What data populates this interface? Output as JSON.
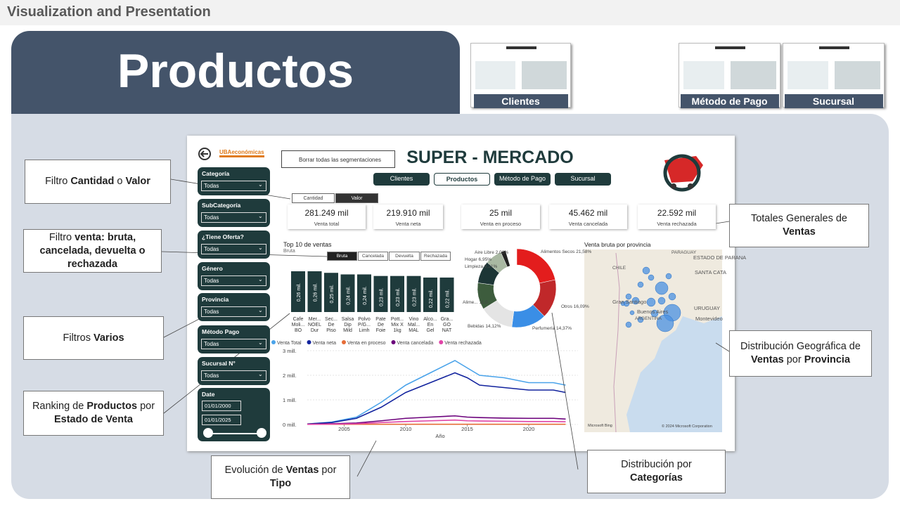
{
  "header": {
    "title": "Visualization and Presentation"
  },
  "banner": {
    "title": "Productos"
  },
  "thumbnails": [
    {
      "label": "Clientes"
    },
    {
      "label": "Método de Pago"
    },
    {
      "label": "Sucursal"
    }
  ],
  "callouts": [
    {
      "parts": [
        "Filtro ",
        "Cantidad",
        " o ",
        "Valor"
      ]
    },
    {
      "parts": [
        "Filtro ",
        "venta: bruta, cancelada, devuelta o rechazada"
      ]
    },
    {
      "parts": [
        "Filtros ",
        "Varios"
      ]
    },
    {
      "parts": [
        "Ranking de ",
        "Productos",
        " por ",
        "Estado de Venta"
      ]
    },
    {
      "parts": [
        "Evolución de ",
        "Ventas",
        " por ",
        "Tipo"
      ]
    },
    {
      "parts": [
        "Distribución por ",
        "Categorías"
      ]
    },
    {
      "parts": [
        "Totales Generales de ",
        "Ventas"
      ]
    },
    {
      "parts": [
        "Distribución Geográfica de ",
        "Ventas",
        " por ",
        "Provincia"
      ]
    }
  ],
  "dashboard": {
    "title": "SUPER - MERCADO",
    "logo": "UBAeconómicas",
    "clear_button": "Borrar todas las segmentaciones",
    "nav": [
      "Clientes",
      "Productos",
      "Método de Pago",
      "Sucursal"
    ],
    "toggle": [
      "Cantidad",
      "Valor"
    ],
    "filters": [
      {
        "label": "Categoría",
        "value": "Todas"
      },
      {
        "label": "SubCategoría",
        "value": "Todas"
      },
      {
        "label": "¿Tiene Oferta?",
        "value": "Todas"
      },
      {
        "label": "Género",
        "value": "Todas"
      },
      {
        "label": "Provincia",
        "value": "Todas"
      },
      {
        "label": "Método Pago",
        "value": "Todas"
      },
      {
        "label": "Sucursal N°",
        "value": "Todas"
      }
    ],
    "date_filter": {
      "label": "Date",
      "from": "01/01/2000",
      "to": "01/01/2025"
    },
    "kpis": [
      {
        "value": "281.249 mil",
        "label": "Venta total"
      },
      {
        "value": "219.910 mil",
        "label": "Venta neta"
      },
      {
        "value": "25 mil",
        "label": "Venta en proceso"
      },
      {
        "value": "45.462 mil",
        "label": "Venta cancelada"
      },
      {
        "value": "22.592 mil",
        "label": "Venta rechazada"
      }
    ],
    "top10": {
      "title": "Top 10 de ventas",
      "subtitle": "Bruta",
      "tabs": [
        "Bruta",
        "Cancelada",
        "Devuelta",
        "Rechazada"
      ],
      "color": "#1f3b3c",
      "categories": [
        "Cafe\nMoli...\nBO",
        "Mer...\nNOEL\nDur",
        "Sec...\nDe\nPiso",
        "Salsa\nDip\nMild",
        "Polvo\nP/G...\nLimh",
        "Pate\nDe\nFoie",
        "Pott...\nMix X\n1kg",
        "Vino\nMal...\nMAL",
        "Alco...\nEn\nGel",
        "Gra...\nGO\nNAT"
      ],
      "values": [
        0.26,
        0.26,
        0.25,
        0.24,
        0.24,
        0.23,
        0.23,
        0.23,
        0.22,
        0.22
      ],
      "value_labels": [
        "0,26 mil.",
        "0,26 mil.",
        "0,25 mil.",
        "0,24 mil.",
        "0,24 mil.",
        "0,23 mil.",
        "0,23 mil.",
        "0,23 mil.",
        "0,22 mil.",
        "0,22 mil."
      ]
    },
    "donut": {
      "slices": [
        {
          "label": "Alimentos Secos",
          "value": 21.58,
          "value_label": "21,58%",
          "color": "#e31d1d"
        },
        {
          "label": "Otros",
          "value": 16.09,
          "value_label": "16,09%",
          "color": "#c0282a"
        },
        {
          "label": "Perfumería",
          "value": 14.37,
          "value_label": "14,37%",
          "color": "#3a8ee6"
        },
        {
          "label": "Bebidas",
          "value": 14.12,
          "value_label": "14,12%",
          "color": "#e4e4e4"
        },
        {
          "label": "Alime...",
          "value": 11.0,
          "value_label": "11,0...",
          "color": "#3d5c3d"
        },
        {
          "label": "Limpieza",
          "value": 9.21,
          "value_label": "9,21%",
          "color": "#1d3636"
        },
        {
          "label": "Hogar",
          "value": 6.95,
          "value_label": "6,95%",
          "color": "#a9b8a2"
        },
        {
          "label": "Aire Libre",
          "value": 2.02,
          "value_label": "2,02%",
          "color": "#222222"
        }
      ]
    },
    "trend": {
      "x_label": "Año",
      "xlim": [
        2002,
        2024
      ],
      "xticks": [
        2005,
        2010,
        2015,
        2020
      ],
      "ylim": [
        0,
        3
      ],
      "yticks": [
        {
          "value": 0,
          "label": "0 mill."
        },
        {
          "value": 1,
          "label": "1 mill."
        },
        {
          "value": 2,
          "label": "2 mill."
        },
        {
          "value": 3,
          "label": "3 mill."
        }
      ],
      "x": [
        2002,
        2004,
        2006,
        2008,
        2010,
        2012,
        2014,
        2015,
        2016,
        2018,
        2020,
        2022,
        2023
      ],
      "series": [
        {
          "name": "Venta Total",
          "color": "#4aa3ea",
          "values": [
            0.02,
            0.1,
            0.3,
            0.9,
            1.6,
            2.1,
            2.6,
            2.3,
            2.0,
            1.9,
            1.7,
            1.7,
            1.6
          ]
        },
        {
          "name": "Venta neta",
          "color": "#12239e",
          "values": [
            0.02,
            0.08,
            0.25,
            0.7,
            1.3,
            1.7,
            2.1,
            1.9,
            1.6,
            1.5,
            1.4,
            1.4,
            1.3
          ]
        },
        {
          "name": "Venta en proceso",
          "color": "#e66c37",
          "values": [
            0.01,
            0.01,
            0.01,
            0.01,
            0.01,
            0.01,
            0.01,
            0.01,
            0.01,
            0.01,
            0.01,
            0.01,
            0.01
          ]
        },
        {
          "name": "Venta cancelada",
          "color": "#6b007b",
          "values": [
            0.01,
            0.03,
            0.06,
            0.15,
            0.25,
            0.3,
            0.35,
            0.3,
            0.28,
            0.26,
            0.25,
            0.25,
            0.22
          ]
        },
        {
          "name": "Venta rechazada",
          "color": "#e044a7",
          "values": [
            0.005,
            0.015,
            0.03,
            0.08,
            0.12,
            0.15,
            0.18,
            0.15,
            0.14,
            0.13,
            0.12,
            0.12,
            0.11
          ]
        }
      ]
    },
    "map": {
      "title": "Venta bruta por provincia",
      "places": [
        "PARAGUAY",
        "CHILE",
        "ESTADO DE PARANA",
        "SANTA CATA",
        "URUGUAY",
        "Gran Santiago",
        "Buenos Aires",
        "ARGENTINA",
        "Montevideo"
      ],
      "credits": [
        "Microsoft Bing",
        "© 2024 Microsoft Corporation"
      ]
    }
  }
}
